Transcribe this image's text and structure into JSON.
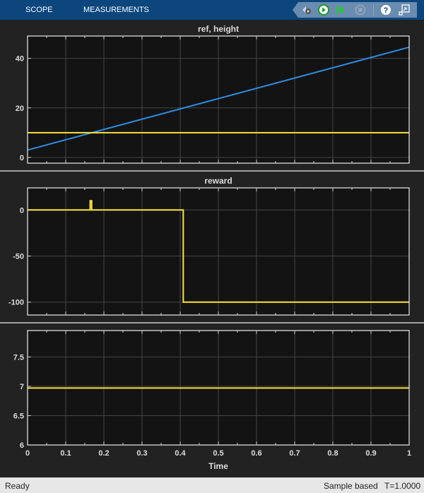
{
  "toolbar": {
    "tabs": [
      "SCOPE",
      "MEASUREMENTS"
    ],
    "tools": [
      "signal-settings-icon",
      "run-icon",
      "step-forward-icon",
      "stop-icon",
      "help-icon",
      "undock-icon"
    ]
  },
  "status": {
    "left": "Ready",
    "mode": "Sample based",
    "time": "T=1.0000"
  },
  "colors": {
    "line_yellow": "#ffe23b",
    "line_blue": "#2d8be0",
    "axes_bg": "#131313",
    "panel_bg": "#222222"
  },
  "chart_data": [
    {
      "type": "line",
      "title": "ref, height",
      "xlim": [
        0,
        1
      ],
      "ylim": [
        -2.3,
        49
      ],
      "yticks": [
        0,
        20,
        40
      ],
      "grid": true,
      "series": [
        {
          "color": "#2d8be0",
          "x": [
            0,
            1
          ],
          "y": [
            3,
            44.5
          ]
        },
        {
          "color": "#ffe23b",
          "x": [
            0,
            1
          ],
          "y": [
            10,
            10
          ]
        }
      ]
    },
    {
      "type": "line",
      "title": "reward",
      "xlim": [
        0,
        1
      ],
      "ylim": [
        -114,
        24
      ],
      "yticks": [
        0,
        -50,
        -100
      ],
      "grid": true,
      "series": [
        {
          "color": "#ffe23b",
          "x": [
            0,
            0.164,
            0.164,
            0.168,
            0.168,
            0.408,
            0.408,
            1
          ],
          "y": [
            0,
            0,
            10,
            10,
            0,
            0,
            -100,
            -100
          ]
        }
      ]
    },
    {
      "type": "line",
      "title": "",
      "xlim": [
        0,
        1
      ],
      "ylim": [
        6,
        7.95
      ],
      "yticks": [
        6,
        6.5,
        7,
        7.5
      ],
      "grid": true,
      "xticks": [
        0,
        0.1,
        0.2,
        0.3,
        0.4,
        0.5,
        0.6,
        0.7,
        0.8,
        0.9,
        1
      ],
      "xlabel": "Time",
      "series": [
        {
          "color": "#ffe23b",
          "x": [
            0,
            1
          ],
          "y": [
            6.97,
            6.97
          ]
        }
      ]
    }
  ]
}
